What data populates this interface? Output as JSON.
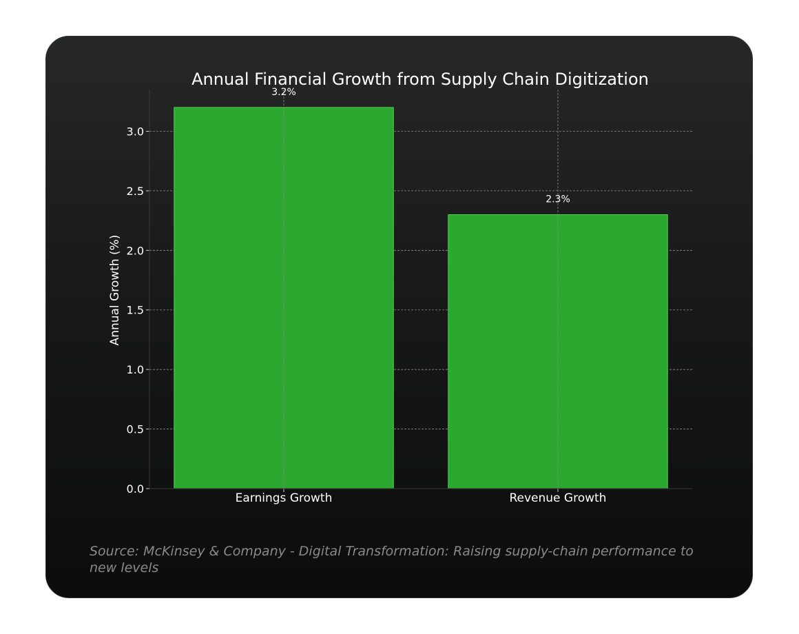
{
  "chart_data": {
    "type": "bar",
    "title": "Annual Financial Growth from Supply Chain Digitization",
    "xlabel": "",
    "ylabel": "Annual Growth (%)",
    "categories": [
      "Earnings Growth",
      "Revenue Growth"
    ],
    "values": [
      3.2,
      2.3
    ],
    "data_labels": [
      "3.2%",
      "2.3%"
    ],
    "ylim": [
      0,
      3.35
    ],
    "yticks": [
      0.0,
      0.5,
      1.0,
      1.5,
      2.0,
      2.5,
      3.0
    ],
    "ytick_labels": [
      "0.0",
      "0.5",
      "1.0",
      "1.5",
      "2.0",
      "2.5",
      "3.0"
    ],
    "grid": true,
    "colors": {
      "bar": "#2ca730",
      "bar_edge": "#4fd64f",
      "text": "#ffffff",
      "grid": "#8c8c8c"
    }
  },
  "source": "Source: McKinsey & Company - Digital Transformation: Raising supply-chain performance to new levels"
}
